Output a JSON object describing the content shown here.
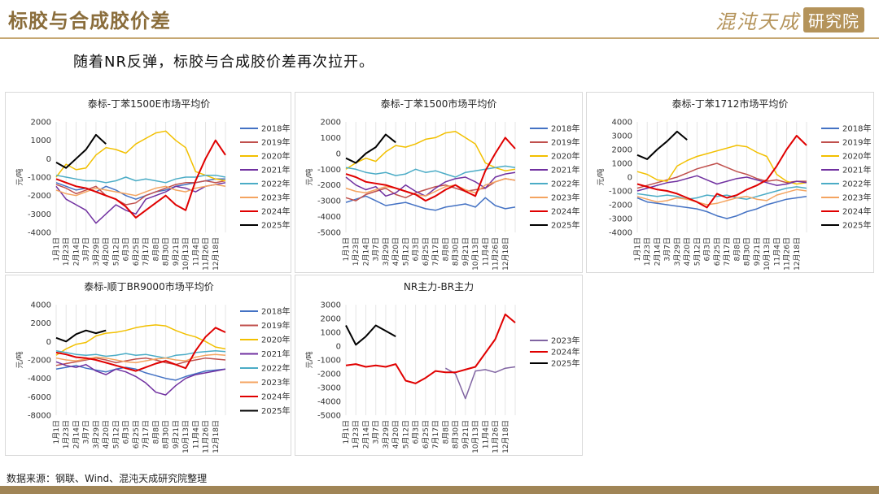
{
  "header": {
    "title": "标胶与合成胶价差",
    "brand_name": "混沌天成",
    "brand_seal": "研究院"
  },
  "subtitle": "随着NR反弹，标胶与合成胶价差再次拉开。",
  "footnote": "数据来源：钢联、Wind、混沌天成研究院整理",
  "colors": {
    "2018年": "#4472c4",
    "2019年": "#c0504d",
    "2020年": "#f2c000",
    "2021年": "#7030a0",
    "2022年": "#4bacc6",
    "2023年": "#f4a460",
    "2024年": "#e00000",
    "2025年": "#000000",
    "2023年_nrbr": "#8064a2"
  },
  "x_ticks": [
    "1月1日",
    "1月23日",
    "2月14日",
    "3月7日",
    "3月29日",
    "4月20日",
    "5月12日",
    "6月3日",
    "6月25日",
    "7月17日",
    "8月8日",
    "8月30日",
    "9月21日",
    "10月13日",
    "11月4日",
    "11月26日",
    "12月18日"
  ],
  "chart_data": [
    {
      "type": "line",
      "title": "泰标-丁苯1500E市场平均价",
      "ylabel": "",
      "ylim": [
        -4000,
        2000
      ],
      "yticks": [
        2000,
        1000,
        0,
        -1000,
        -2000,
        -3000,
        -4000
      ],
      "legend_position": "right",
      "series": [
        {
          "name": "2018年",
          "values": [
            -1300,
            -1500,
            -1700,
            -1600,
            -1800,
            -1500,
            -1700,
            -2000,
            -2200,
            -2000,
            -1800,
            -1700,
            -1500,
            -1400,
            -1300,
            -1200,
            -1100,
            -1100
          ]
        },
        {
          "name": "2019年",
          "values": [
            -1400,
            -1600,
            -1900,
            -1700,
            -1500,
            -2000,
            -2200,
            -2500,
            -2400,
            -2000,
            -1800,
            -1600,
            -1400,
            -1300,
            -1300,
            -1200,
            -1300,
            -1200
          ]
        },
        {
          "name": "2020年",
          "values": [
            -1000,
            -300,
            -600,
            -500,
            200,
            600,
            500,
            300,
            800,
            1100,
            1400,
            1500,
            1000,
            600,
            -700,
            -900,
            -1100,
            -1200
          ]
        },
        {
          "name": "2021年",
          "values": [
            -1500,
            -2200,
            -2500,
            -2800,
            -3500,
            -3000,
            -2500,
            -2800,
            -3000,
            -2200,
            -2000,
            -1800,
            -1500,
            -1600,
            -1800,
            -1500,
            -1400,
            -1300
          ]
        },
        {
          "name": "2022年",
          "values": [
            -900,
            -1000,
            -1100,
            -1200,
            -1200,
            -1300,
            -1200,
            -1000,
            -1200,
            -1100,
            -1200,
            -1300,
            -1100,
            -1000,
            -1000,
            -900,
            -900,
            -1000
          ]
        },
        {
          "name": "2023年",
          "values": [
            -1700,
            -1900,
            -2000,
            -1800,
            -1600,
            -1700,
            -1800,
            -1900,
            -2000,
            -1800,
            -1600,
            -1500,
            -1700,
            -1800,
            -1600,
            -1500,
            -1400,
            -1500
          ]
        },
        {
          "name": "2024年",
          "values": [
            -1100,
            -1300,
            -1500,
            -1600,
            -1800,
            -2000,
            -2200,
            -2600,
            -3200,
            -2800,
            -2400,
            -2000,
            -2500,
            -2800,
            -1200,
            0,
            1000,
            200
          ]
        },
        {
          "name": "2025年",
          "values": [
            -200,
            -500,
            0,
            500,
            1300,
            800
          ]
        }
      ]
    },
    {
      "type": "line",
      "title": "泰标-丁苯1500市场平均价",
      "ylabel": "",
      "ylim": [
        -5000,
        2000
      ],
      "yticks": [
        2000,
        1000,
        0,
        -1000,
        -2000,
        -3000,
        -4000,
        -5000
      ],
      "legend_position": "right",
      "series": [
        {
          "name": "2018年",
          "values": [
            -3100,
            -2900,
            -2700,
            -3000,
            -3300,
            -3200,
            -3100,
            -3300,
            -3500,
            -3600,
            -3400,
            -3300,
            -3200,
            -3400,
            -2800,
            -3300,
            -3500,
            -3400
          ]
        },
        {
          "name": "2019年",
          "values": [
            -2800,
            -3000,
            -2600,
            -2400,
            -2200,
            -2600,
            -2800,
            -2500,
            -2300,
            -2100,
            -2000,
            -2200,
            -2400,
            -2300,
            -2200,
            -1800,
            -1600,
            -1700
          ]
        },
        {
          "name": "2020年",
          "values": [
            -1000,
            -600,
            -300,
            -500,
            100,
            500,
            400,
            600,
            900,
            1000,
            1300,
            1400,
            1000,
            600,
            -600,
            -900,
            -1100,
            -1000
          ]
        },
        {
          "name": "2021年",
          "values": [
            -1500,
            -2000,
            -2300,
            -2100,
            -2700,
            -2500,
            -2000,
            -2400,
            -2700,
            -2200,
            -1800,
            -1600,
            -1500,
            -1800,
            -2200,
            -1500,
            -1300,
            -1200
          ]
        },
        {
          "name": "2022年",
          "values": [
            -900,
            -1000,
            -1200,
            -1300,
            -1200,
            -1400,
            -1300,
            -1000,
            -1200,
            -1100,
            -1300,
            -1500,
            -1200,
            -1100,
            -1000,
            -900,
            -800,
            -900
          ]
        },
        {
          "name": "2023年",
          "values": [
            -2200,
            -2400,
            -2500,
            -2300,
            -2100,
            -2200,
            -2400,
            -2600,
            -2700,
            -2400,
            -2100,
            -2000,
            -2300,
            -2500,
            -2000,
            -1800,
            -1600,
            -1700
          ]
        },
        {
          "name": "2024年",
          "values": [
            -1300,
            -1500,
            -1800,
            -1900,
            -2000,
            -2200,
            -2400,
            -2600,
            -3000,
            -2700,
            -2300,
            -2000,
            -2400,
            -2700,
            -1100,
            0,
            1000,
            300
          ]
        },
        {
          "name": "2025年",
          "values": [
            -300,
            -600,
            0,
            400,
            1200,
            700
          ]
        }
      ]
    },
    {
      "type": "line",
      "title": "泰标-丁苯1712市场平均价",
      "ylabel": "",
      "ylim": [
        -4000,
        4000
      ],
      "yticks": [
        4000,
        3000,
        2000,
        1000,
        0,
        -1000,
        -2000,
        -3000,
        -4000
      ],
      "legend_position": "right",
      "series": [
        {
          "name": "2018年",
          "values": [
            -1500,
            -1800,
            -1900,
            -2000,
            -2100,
            -2200,
            -2300,
            -2500,
            -2800,
            -3000,
            -2800,
            -2500,
            -2300,
            -2000,
            -1800,
            -1600,
            -1500,
            -1400
          ]
        },
        {
          "name": "2019年",
          "values": [
            -800,
            -600,
            -400,
            -200,
            0,
            300,
            600,
            800,
            1000,
            700,
            400,
            200,
            -100,
            -300,
            -200,
            -400,
            -300,
            -300
          ]
        },
        {
          "name": "2020年",
          "values": [
            400,
            200,
            -200,
            -300,
            800,
            1200,
            1500,
            1700,
            1900,
            2100,
            2300,
            2200,
            1800,
            1500,
            200,
            -300,
            -500,
            -400
          ]
        },
        {
          "name": "2021年",
          "values": [
            -1000,
            -800,
            -600,
            -400,
            -300,
            -100,
            100,
            -200,
            -500,
            -300,
            -100,
            0,
            -200,
            -400,
            -600,
            -500,
            -300,
            -400
          ]
        },
        {
          "name": "2022年",
          "values": [
            -1200,
            -1300,
            -1400,
            -1300,
            -1400,
            -1600,
            -1500,
            -1300,
            -1400,
            -1300,
            -1500,
            -1600,
            -1400,
            -1200,
            -1000,
            -800,
            -700,
            -800
          ]
        },
        {
          "name": "2023年",
          "values": [
            -1400,
            -1600,
            -1800,
            -1700,
            -1500,
            -1600,
            -1800,
            -2000,
            -1900,
            -1700,
            -1500,
            -1400,
            -1600,
            -1700,
            -1300,
            -1100,
            -900,
            -1000
          ]
        },
        {
          "name": "2024年",
          "values": [
            -500,
            -700,
            -900,
            -1000,
            -1200,
            -1500,
            -1800,
            -2200,
            -1200,
            -1500,
            -1300,
            -900,
            -600,
            -200,
            800,
            2000,
            3000,
            2300
          ]
        },
        {
          "name": "2025年",
          "values": [
            1600,
            1300,
            2000,
            2600,
            3300,
            2700
          ]
        }
      ]
    },
    {
      "type": "line",
      "title": "泰标-顺丁BR9000市场平均价",
      "ylabel": "",
      "ylim": [
        -8000,
        4000
      ],
      "yticks": [
        4000,
        2000,
        0,
        -2000,
        -4000,
        -6000,
        -8000
      ],
      "legend_position": "right",
      "series": [
        {
          "name": "2018年",
          "values": [
            -3000,
            -2800,
            -2600,
            -2900,
            -3100,
            -3300,
            -3000,
            -2800,
            -3000,
            -3400,
            -3700,
            -4000,
            -4200,
            -3800,
            -3500,
            -3200,
            -3100,
            -3000
          ]
        },
        {
          "name": "2019年",
          "values": [
            -2600,
            -2400,
            -2200,
            -2000,
            -1800,
            -2000,
            -2300,
            -2100,
            -1900,
            -1800,
            -2000,
            -2300,
            -2500,
            -2200,
            -2000,
            -1800,
            -1900,
            -2000
          ]
        },
        {
          "name": "2020年",
          "values": [
            -1500,
            -800,
            -300,
            -100,
            600,
            900,
            1000,
            1200,
            1500,
            1700,
            1800,
            1700,
            1200,
            800,
            500,
            0,
            -600,
            -800
          ]
        },
        {
          "name": "2021年",
          "values": [
            -2200,
            -2600,
            -2800,
            -2500,
            -3200,
            -3600,
            -3000,
            -3300,
            -3800,
            -4500,
            -5500,
            -5800,
            -4800,
            -4000,
            -3600,
            -3400,
            -3200,
            -3000
          ]
        },
        {
          "name": "2022年",
          "values": [
            -1000,
            -1200,
            -1400,
            -1500,
            -1400,
            -1600,
            -1500,
            -1300,
            -1500,
            -1400,
            -1600,
            -1800,
            -1500,
            -1400,
            -1200,
            -1100,
            -1000,
            -1100
          ]
        },
        {
          "name": "2023年",
          "values": [
            -1800,
            -2000,
            -2100,
            -1900,
            -1700,
            -1800,
            -2000,
            -2200,
            -2300,
            -2100,
            -1900,
            -1800,
            -2000,
            -2100,
            -1700,
            -1500,
            -1400,
            -1500
          ]
        },
        {
          "name": "2024年",
          "values": [
            -1200,
            -1400,
            -1700,
            -1800,
            -2000,
            -2300,
            -2600,
            -2900,
            -3200,
            -2800,
            -2400,
            -2100,
            -2500,
            -2900,
            -1000,
            500,
            1500,
            1000
          ]
        },
        {
          "name": "2025年",
          "values": [
            400,
            0,
            800,
            1200,
            900,
            1200
          ]
        }
      ]
    },
    {
      "type": "line",
      "title": "NR主力-BR主力",
      "ylabel": "",
      "ylim": [
        -5000,
        3000
      ],
      "yticks": [
        3000,
        2000,
        1000,
        0,
        -1000,
        -2000,
        -3000,
        -4000,
        -5000
      ],
      "legend_position": "right",
      "series": [
        {
          "name": "2023年",
          "start": 10,
          "values": [
            -1600,
            -2000,
            -3800,
            -1800,
            -1700,
            -1900,
            -1600,
            -1500
          ]
        },
        {
          "name": "2024年",
          "values": [
            -1400,
            -1300,
            -1500,
            -1400,
            -1500,
            -1300,
            -2500,
            -2700,
            -2300,
            -1800,
            -1900,
            -1900,
            -1700,
            -1500,
            -500,
            500,
            2300,
            1700
          ]
        },
        {
          "name": "2025年",
          "values": [
            1500,
            100,
            700,
            1500,
            1100,
            700
          ]
        }
      ]
    }
  ]
}
